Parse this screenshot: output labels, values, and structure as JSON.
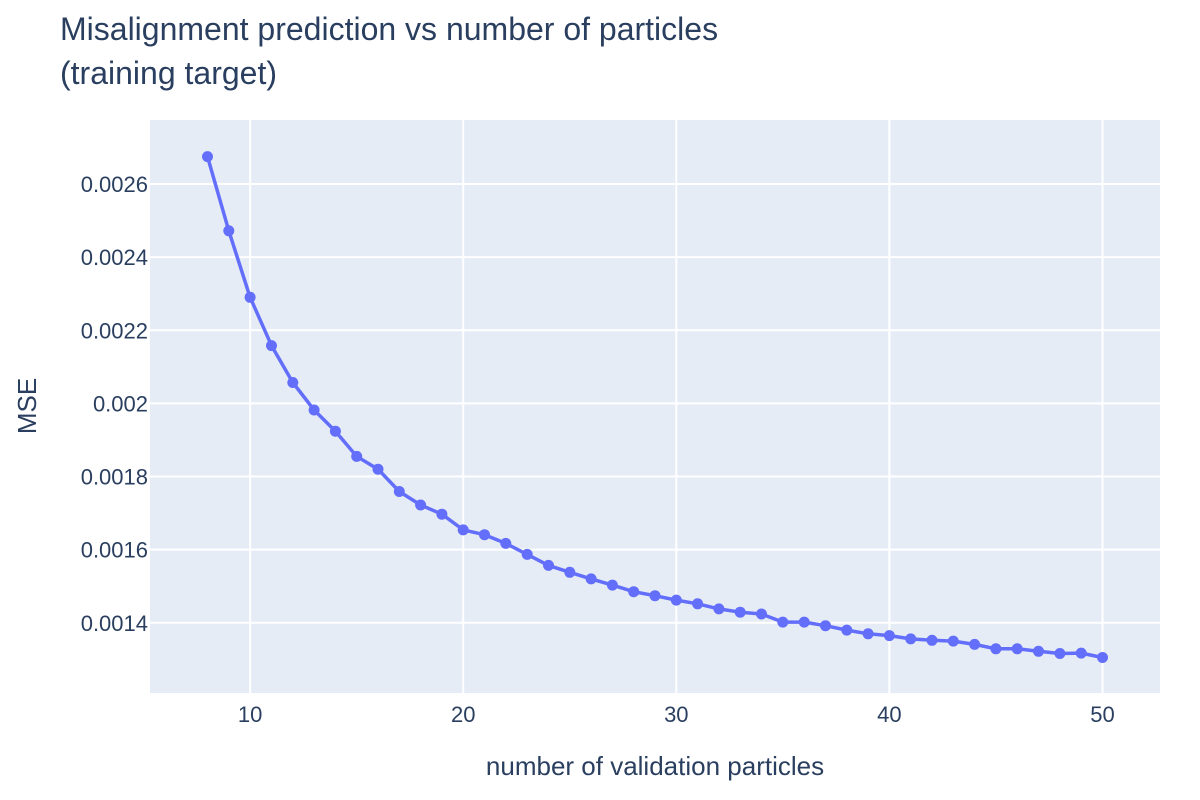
{
  "chart_data": {
    "type": "line",
    "title_line1": "Misalignment prediction vs number of particles",
    "title_line2": "(training target)",
    "xlabel": "number of validation particles",
    "ylabel": "MSE",
    "xlim": [
      5.3,
      52.7
    ],
    "ylim": [
      0.001208,
      0.002775
    ],
    "x_ticks": [
      10,
      20,
      30,
      40,
      50
    ],
    "y_ticks": [
      0.0014,
      0.0016,
      0.0018,
      0.002,
      0.0022,
      0.0024,
      0.0026
    ],
    "y_tick_labels": [
      "0.0014",
      "0.0016",
      "0.0018",
      "0.002",
      "0.0022",
      "0.0024",
      "0.0026"
    ],
    "grid": true,
    "colors": {
      "line": "#636efa",
      "plot_bg": "#e5ecf6",
      "text": "#2a3f5f"
    },
    "series": [
      {
        "x": [
          8,
          9,
          10,
          11,
          12,
          13,
          14,
          15,
          16,
          17,
          18,
          19,
          20,
          21,
          22,
          23,
          24,
          25,
          26,
          27,
          28,
          29,
          30,
          31,
          32,
          33,
          34,
          35,
          36,
          37,
          38,
          39,
          40,
          41,
          42,
          43,
          44,
          45,
          46,
          47,
          48,
          49,
          50
        ],
        "y": [
          0.002675,
          0.002472,
          0.00229,
          0.002158,
          0.002057,
          0.001982,
          0.001924,
          0.001855,
          0.00182,
          0.001759,
          0.001722,
          0.001697,
          0.001654,
          0.001641,
          0.001617,
          0.001587,
          0.001557,
          0.001538,
          0.00152,
          0.001503,
          0.001485,
          0.001474,
          0.001462,
          0.001452,
          0.001438,
          0.001429,
          0.001424,
          0.001402,
          0.001402,
          0.001392,
          0.00138,
          0.00137,
          0.001365,
          0.001356,
          0.001352,
          0.00135,
          0.001341,
          0.001329,
          0.001329,
          0.001322,
          0.001316,
          0.001317,
          0.001305
        ]
      }
    ]
  }
}
